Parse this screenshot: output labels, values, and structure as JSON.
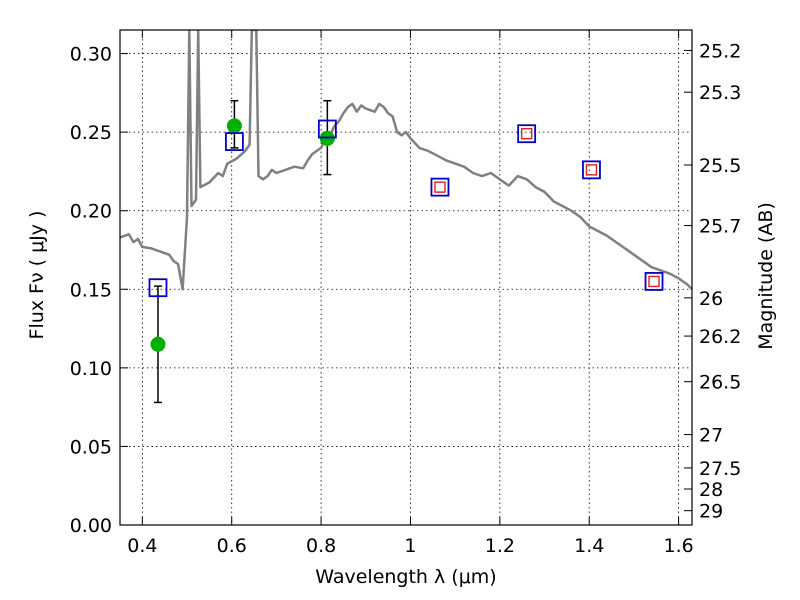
{
  "chart_data": {
    "type": "scatter",
    "title": "",
    "xlabel": "Wavelength  λ (μm)",
    "ylabel": "Flux  Fν  ( μJy )",
    "ylabel_right": "Magnitude (AB)",
    "xlim": [
      0.35,
      1.63
    ],
    "ylim": [
      0.0,
      0.315
    ],
    "grid": true,
    "x_ticks": [
      0.4,
      0.6,
      0.8,
      1.0,
      1.2,
      1.4,
      1.6
    ],
    "x_tick_labels": [
      "0.4",
      "0.6",
      "0.8",
      "1",
      "1.2",
      "1.4",
      "1.6"
    ],
    "y_ticks": [
      0.0,
      0.05,
      0.1,
      0.15,
      0.2,
      0.25,
      0.3
    ],
    "y_tick_labels": [
      "0.00",
      "0.05",
      "0.10",
      "0.15",
      "0.20",
      "0.25",
      "0.30"
    ],
    "right_ticks": [
      {
        "mag": 25.2,
        "label": "25.2"
      },
      {
        "mag": 25.3,
        "label": "25.3"
      },
      {
        "mag": 25.5,
        "label": "25.5"
      },
      {
        "mag": 25.7,
        "label": "25.7"
      },
      {
        "mag": 26.0,
        "label": "26"
      },
      {
        "mag": 26.2,
        "label": "26.2"
      },
      {
        "mag": 26.5,
        "label": "26.5"
      },
      {
        "mag": 27.0,
        "label": "27"
      },
      {
        "mag": 27.5,
        "label": "27.5"
      },
      {
        "mag": 28.0,
        "label": "28"
      },
      {
        "mag": 29.0,
        "label": "29"
      }
    ],
    "series": [
      {
        "kind": "spectrum-line",
        "color": "#808080",
        "points": [
          [
            0.35,
            0.183
          ],
          [
            0.37,
            0.185
          ],
          [
            0.38,
            0.18
          ],
          [
            0.39,
            0.182
          ],
          [
            0.4,
            0.177
          ],
          [
            0.42,
            0.176
          ],
          [
            0.44,
            0.174
          ],
          [
            0.46,
            0.172
          ],
          [
            0.47,
            0.168
          ],
          [
            0.48,
            0.166
          ],
          [
            0.49,
            0.15
          ],
          [
            0.5,
            0.196
          ],
          [
            0.505,
            0.315
          ],
          [
            0.51,
            0.203
          ],
          [
            0.52,
            0.207
          ],
          [
            0.525,
            0.315
          ],
          [
            0.53,
            0.215
          ],
          [
            0.55,
            0.218
          ],
          [
            0.57,
            0.224
          ],
          [
            0.58,
            0.222
          ],
          [
            0.59,
            0.23
          ],
          [
            0.61,
            0.233
          ],
          [
            0.63,
            0.238
          ],
          [
            0.64,
            0.242
          ],
          [
            0.645,
            0.315
          ],
          [
            0.655,
            0.315
          ],
          [
            0.66,
            0.222
          ],
          [
            0.67,
            0.22
          ],
          [
            0.68,
            0.222
          ],
          [
            0.69,
            0.226
          ],
          [
            0.7,
            0.224
          ],
          [
            0.72,
            0.226
          ],
          [
            0.74,
            0.228
          ],
          [
            0.76,
            0.227
          ],
          [
            0.77,
            0.232
          ],
          [
            0.78,
            0.236
          ],
          [
            0.8,
            0.24
          ],
          [
            0.81,
            0.246
          ],
          [
            0.82,
            0.248
          ],
          [
            0.83,
            0.254
          ],
          [
            0.84,
            0.257
          ],
          [
            0.85,
            0.262
          ],
          [
            0.86,
            0.266
          ],
          [
            0.87,
            0.268
          ],
          [
            0.88,
            0.263
          ],
          [
            0.89,
            0.267
          ],
          [
            0.9,
            0.265
          ],
          [
            0.92,
            0.263
          ],
          [
            0.93,
            0.268
          ],
          [
            0.94,
            0.266
          ],
          [
            0.95,
            0.262
          ],
          [
            0.96,
            0.26
          ],
          [
            0.97,
            0.25
          ],
          [
            0.98,
            0.248
          ],
          [
            0.99,
            0.25
          ],
          [
            1.0,
            0.246
          ],
          [
            1.02,
            0.24
          ],
          [
            1.04,
            0.238
          ],
          [
            1.06,
            0.235
          ],
          [
            1.08,
            0.232
          ],
          [
            1.1,
            0.23
          ],
          [
            1.12,
            0.228
          ],
          [
            1.14,
            0.224
          ],
          [
            1.16,
            0.222
          ],
          [
            1.18,
            0.224
          ],
          [
            1.2,
            0.22
          ],
          [
            1.22,
            0.216
          ],
          [
            1.24,
            0.222
          ],
          [
            1.26,
            0.22
          ],
          [
            1.28,
            0.215
          ],
          [
            1.3,
            0.212
          ],
          [
            1.32,
            0.206
          ],
          [
            1.34,
            0.203
          ],
          [
            1.36,
            0.2
          ],
          [
            1.38,
            0.196
          ],
          [
            1.4,
            0.19
          ],
          [
            1.42,
            0.187
          ],
          [
            1.44,
            0.184
          ],
          [
            1.46,
            0.18
          ],
          [
            1.48,
            0.176
          ],
          [
            1.5,
            0.172
          ],
          [
            1.52,
            0.168
          ],
          [
            1.54,
            0.164
          ],
          [
            1.56,
            0.162
          ],
          [
            1.58,
            0.16
          ],
          [
            1.6,
            0.157
          ],
          [
            1.62,
            0.153
          ],
          [
            1.63,
            0.15
          ]
        ]
      },
      {
        "kind": "observed-points",
        "color": "#00b000",
        "points": [
          {
            "x": 0.435,
            "y": 0.115,
            "err_low": 0.078,
            "err_high": 0.152
          },
          {
            "x": 0.606,
            "y": 0.254,
            "err_low": 0.24,
            "err_high": 0.27
          },
          {
            "x": 0.814,
            "y": 0.246,
            "err_low": 0.223,
            "err_high": 0.27
          }
        ]
      },
      {
        "kind": "model-squares",
        "color": "#0000cc",
        "points": [
          {
            "x": 0.435,
            "y": 0.151
          },
          {
            "x": 0.606,
            "y": 0.244
          },
          {
            "x": 0.814,
            "y": 0.252
          },
          {
            "x": 1.066,
            "y": 0.215
          },
          {
            "x": 1.26,
            "y": 0.249
          },
          {
            "x": 1.405,
            "y": 0.226
          },
          {
            "x": 1.545,
            "y": 0.155
          }
        ]
      },
      {
        "kind": "inner-red-squares",
        "color": "#e02020",
        "points": [
          {
            "x": 1.066,
            "y": 0.215
          },
          {
            "x": 1.26,
            "y": 0.249
          },
          {
            "x": 1.405,
            "y": 0.226
          },
          {
            "x": 1.545,
            "y": 0.155
          }
        ]
      }
    ]
  }
}
